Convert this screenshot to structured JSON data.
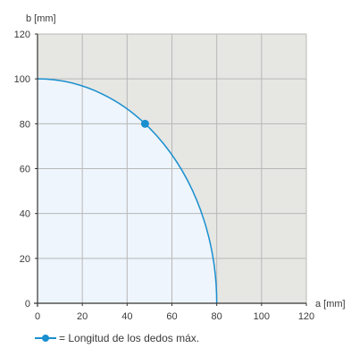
{
  "chart_data": {
    "type": "line",
    "xlabel": "a [mm]",
    "ylabel": "b [mm]",
    "xlim": [
      0,
      120
    ],
    "ylim": [
      0,
      120
    ],
    "xticks": [
      0,
      20,
      40,
      60,
      80,
      100,
      120
    ],
    "yticks": [
      0,
      20,
      40,
      60,
      80,
      100,
      120
    ],
    "grid": true,
    "series": [
      {
        "name": "Longitud de los dedos máx.",
        "shape": "quarter-ellipse",
        "x": [
          0,
          20,
          40,
          48,
          60,
          70,
          76,
          80
        ],
        "y": [
          100,
          96.8,
          86.6,
          80,
          66.1,
          48.4,
          31.2,
          0
        ],
        "marker_point": {
          "x": 48,
          "y": 80
        }
      }
    ],
    "legend": {
      "text": "= Longitud de los dedos máx.",
      "position": "bottom-left"
    },
    "colors": {
      "line": "#1a8fcf",
      "inside_fill": "#eef5fc",
      "outside_fill": "#e6e6e3",
      "grid": "#b8b8b8",
      "axis": "#333333"
    }
  }
}
